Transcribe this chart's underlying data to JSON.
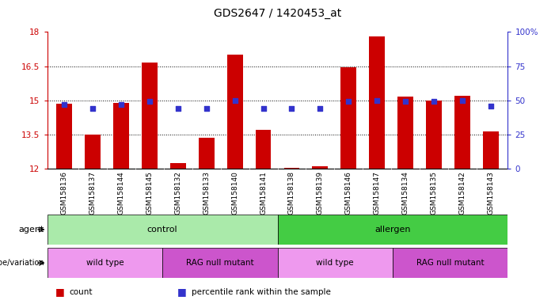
{
  "title": "GDS2647 / 1420453_at",
  "samples": [
    "GSM158136",
    "GSM158137",
    "GSM158144",
    "GSM158145",
    "GSM158132",
    "GSM158133",
    "GSM158140",
    "GSM158141",
    "GSM158138",
    "GSM158139",
    "GSM158146",
    "GSM158147",
    "GSM158134",
    "GSM158135",
    "GSM158142",
    "GSM158143"
  ],
  "counts": [
    14.85,
    13.5,
    14.9,
    16.65,
    12.25,
    13.35,
    17.0,
    13.7,
    12.05,
    12.1,
    16.45,
    17.8,
    15.15,
    15.0,
    15.2,
    13.65
  ],
  "percentiles": [
    47,
    44,
    47,
    49,
    44,
    44,
    50,
    44,
    44,
    44,
    49,
    50,
    49,
    49,
    50,
    46
  ],
  "ylim_left": [
    12,
    18
  ],
  "ylim_right": [
    0,
    100
  ],
  "yticks_left": [
    12,
    13.5,
    15,
    16.5,
    18
  ],
  "ytick_labels_left": [
    "12",
    "13.5",
    "15",
    "16.5",
    "18"
  ],
  "yticks_right": [
    0,
    25,
    50,
    75,
    100
  ],
  "ytick_labels_right": [
    "0",
    "25",
    "50",
    "75",
    "100%"
  ],
  "bar_color": "#cc0000",
  "dot_color": "#3333cc",
  "bar_bottom": 12,
  "agent_groups": [
    {
      "label": "control",
      "start": 0,
      "end": 8,
      "color": "#aaeaaa"
    },
    {
      "label": "allergen",
      "start": 8,
      "end": 16,
      "color": "#44cc44"
    }
  ],
  "genotype_groups": [
    {
      "label": "wild type",
      "start": 0,
      "end": 4,
      "color": "#ee99ee"
    },
    {
      "label": "RAG null mutant",
      "start": 4,
      "end": 8,
      "color": "#cc55cc"
    },
    {
      "label": "wild type",
      "start": 8,
      "end": 12,
      "color": "#ee99ee"
    },
    {
      "label": "RAG null mutant",
      "start": 12,
      "end": 16,
      "color": "#cc55cc"
    }
  ],
  "agent_label": "agent",
  "genotype_label": "genotype/variation",
  "legend_items": [
    {
      "label": "count",
      "color": "#cc0000"
    },
    {
      "label": "percentile rank within the sample",
      "color": "#3333cc"
    }
  ],
  "xtick_bg": "#dddddd",
  "bar_width": 0.55
}
